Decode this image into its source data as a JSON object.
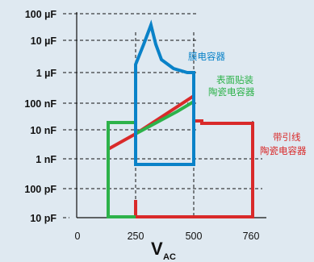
{
  "chart_data": {
    "type": "diagram",
    "xlabel": "V",
    "xlabel_sub": "AC",
    "xticks": [
      "0",
      "250",
      "500",
      "760"
    ],
    "yticks": [
      "100 µF",
      "10 µF",
      "1 µF",
      "100 nF",
      "10 nF",
      "1 nF",
      "100 pF",
      "10 pF"
    ],
    "regions": [
      {
        "label": "膜电容器",
        "color": "#0a82c8"
      },
      {
        "label_lines": [
          "表面贴装",
          "陶瓷电容器"
        ],
        "color": "#2db24a"
      },
      {
        "label_lines": [
          "带引线",
          "陶瓷电容器"
        ],
        "color": "#d92a2a"
      }
    ]
  }
}
